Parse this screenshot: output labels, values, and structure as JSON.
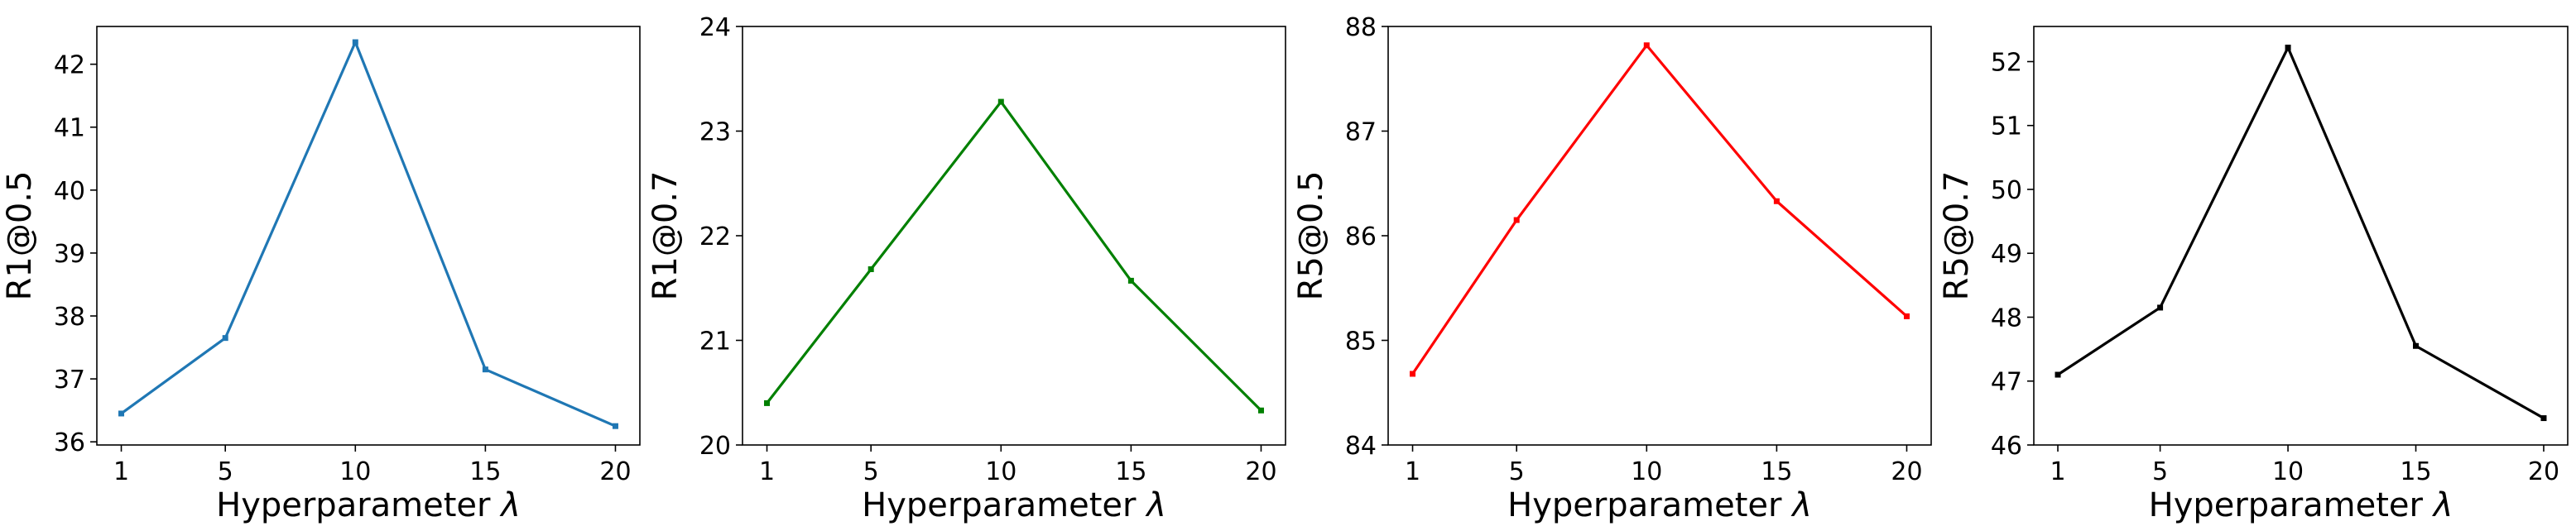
{
  "chart_data": [
    {
      "type": "line",
      "categories": [
        "1",
        "5",
        "10",
        "15",
        "20"
      ],
      "series": [
        {
          "values": [
            36.45,
            37.65,
            42.35,
            37.15,
            36.25
          ],
          "color": "#1f77b4"
        }
      ],
      "xlabel": "Hyperparameter λ",
      "ylabel": "R1@0.5",
      "ylim": [
        35.95,
        42.6
      ],
      "yticks": [
        36,
        37,
        38,
        39,
        40,
        41,
        42
      ],
      "grid": false
    },
    {
      "type": "line",
      "categories": [
        "1",
        "5",
        "10",
        "15",
        "20"
      ],
      "series": [
        {
          "values": [
            20.4,
            21.68,
            23.28,
            21.57,
            20.33
          ],
          "color": "#008000"
        }
      ],
      "xlabel": "Hyperparameter λ",
      "ylabel": "R1@0.7",
      "ylim": [
        20.0,
        24.0
      ],
      "yticks": [
        20,
        21,
        22,
        23,
        24
      ],
      "grid": false
    },
    {
      "type": "line",
      "categories": [
        "1",
        "5",
        "10",
        "15",
        "20"
      ],
      "series": [
        {
          "values": [
            84.68,
            86.15,
            87.82,
            86.33,
            85.23
          ],
          "color": "#ff0000"
        }
      ],
      "xlabel": "Hyperparameter λ",
      "ylabel": "R5@0.5",
      "ylim": [
        84.0,
        88.0
      ],
      "yticks": [
        84,
        85,
        86,
        87,
        88
      ],
      "grid": false
    },
    {
      "type": "line",
      "categories": [
        "1",
        "5",
        "10",
        "15",
        "20"
      ],
      "series": [
        {
          "values": [
            47.1,
            48.15,
            52.22,
            47.55,
            46.42
          ],
          "color": "#000000"
        }
      ],
      "xlabel": "Hyperparameter λ",
      "ylabel": "R5@0.7",
      "ylim": [
        46.0,
        52.55
      ],
      "yticks": [
        46,
        47,
        48,
        49,
        50,
        51,
        52
      ],
      "grid": false
    }
  ]
}
